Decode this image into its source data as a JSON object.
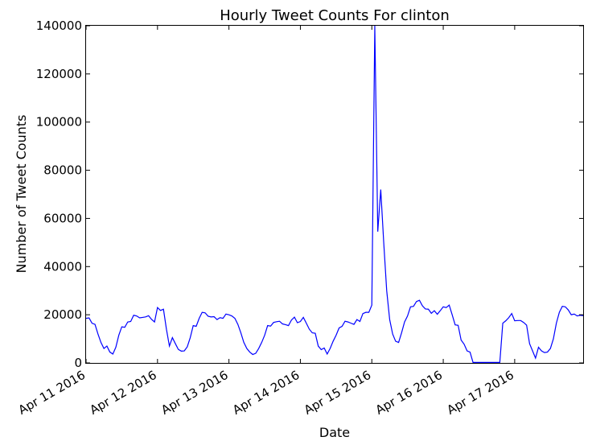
{
  "chart_data": {
    "type": "line",
    "title": "Hourly Tweet Counts For clinton",
    "xlabel": "Date",
    "ylabel": "Number of Tweet Counts",
    "ylim": [
      0,
      140000
    ],
    "xlim": [
      "2016-04-11 00:00",
      "2016-04-17 23:00"
    ],
    "yticks": [
      0,
      20000,
      40000,
      60000,
      80000,
      100000,
      120000,
      140000
    ],
    "ytick_labels": [
      "0",
      "20000",
      "40000",
      "60000",
      "80000",
      "100000",
      "120000",
      "140000"
    ],
    "xticks": [
      "2016-04-11",
      "2016-04-12",
      "2016-04-13",
      "2016-04-14",
      "2016-04-15",
      "2016-04-16",
      "2016-04-17"
    ],
    "xtick_labels": [
      "Apr 11 2016",
      "Apr 12 2016",
      "Apr 13 2016",
      "Apr 14 2016",
      "Apr 15 2016",
      "Apr 16 2016",
      "Apr 17 2016"
    ],
    "grid": false,
    "line_color": "#0000ff",
    "series": [
      {
        "values": [
          18500,
          18700,
          16500,
          16000,
          12000,
          8500,
          6000,
          7000,
          4500,
          3700,
          6500,
          11500,
          15000,
          14800,
          17000,
          17200,
          19800,
          19500,
          18700,
          18900,
          19100,
          19600,
          18100,
          17000,
          23000,
          21800,
          22300,
          14000,
          7000,
          10500,
          8000,
          5600,
          4900,
          5000,
          6700,
          10500,
          15500,
          15200,
          18500,
          21000,
          20800,
          19400,
          19100,
          19200,
          18000,
          18800,
          18500,
          20300,
          20000,
          19500,
          18500,
          16000,
          12500,
          8500,
          6000,
          4500,
          3500,
          4000,
          6000,
          8500,
          11500,
          15500,
          15300,
          16800,
          17100,
          17300,
          16200,
          15900,
          15500,
          17800,
          19000,
          16700,
          17200,
          18900,
          16500,
          14000,
          12500,
          12300,
          7000,
          5500,
          6200,
          3700,
          6000,
          9000,
          11500,
          14500,
          15200,
          17300,
          17000,
          16500,
          16000,
          18000,
          17200,
          20500,
          21000,
          21000,
          24000,
          140000,
          54500,
          72000,
          50000,
          30000,
          18000,
          12000,
          9000,
          8500,
          12500,
          17000,
          19500,
          23300,
          23500,
          25500,
          26000,
          23700,
          22400,
          22300,
          20600,
          21700,
          20200,
          21700,
          23300,
          23000,
          24000,
          20000,
          15800,
          15600,
          9500,
          7800,
          5000,
          4500,
          200,
          200,
          200,
          200,
          200,
          200,
          200,
          200,
          200,
          200,
          16500,
          17500,
          18800,
          20500,
          17500,
          17600,
          17600,
          16800,
          15700,
          8000,
          5000,
          2000,
          6500,
          5000,
          4300,
          4500,
          6000,
          10000,
          16500,
          21000,
          23500,
          23300,
          22000,
          20000,
          20300,
          19500,
          19800,
          19600
        ]
      }
    ]
  }
}
